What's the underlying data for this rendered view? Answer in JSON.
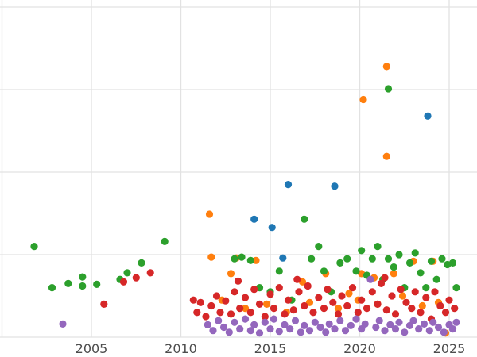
{
  "chart_data": {
    "type": "scatter",
    "title": "",
    "xlabel": "",
    "ylabel": "",
    "grid": true,
    "legend_position": "none",
    "x_tick_labels": [
      "2005",
      "2010",
      "2015",
      "2020",
      "2025"
    ],
    "x_tick_years": [
      2005,
      2010,
      2015,
      2020,
      2025
    ],
    "x_gridline_years": [
      2000,
      2005,
      2010,
      2015,
      2020,
      2025
    ],
    "x_range": [
      2000,
      2026.3
    ],
    "y_range": [
      0,
      4.0
    ],
    "y_gridlines": [
      0,
      1,
      2,
      3,
      4
    ],
    "y_tick_labels_visible": false,
    "series": [
      {
        "name": "blue",
        "color": "#1f77b4",
        "points": [
          [
            2014.1,
            1.43
          ],
          [
            2015.1,
            1.33
          ],
          [
            2015.7,
            0.96
          ],
          [
            2016.0,
            1.85
          ],
          [
            2018.6,
            1.83
          ],
          [
            2023.8,
            2.68
          ]
        ]
      },
      {
        "name": "orange",
        "color": "#ff7f0e",
        "points": [
          [
            2011.6,
            1.49
          ],
          [
            2011.7,
            0.97
          ],
          [
            2012.3,
            0.45
          ],
          [
            2012.8,
            0.77
          ],
          [
            2013.1,
            0.96
          ],
          [
            2013.6,
            0.35
          ],
          [
            2014.2,
            0.93
          ],
          [
            2014.8,
            0.4
          ],
          [
            2015.9,
            0.3
          ],
          [
            2016.8,
            0.67
          ],
          [
            2017.2,
            0.42
          ],
          [
            2018.1,
            0.77
          ],
          [
            2018.8,
            0.35
          ],
          [
            2019.4,
            0.53
          ],
          [
            2019.9,
            0.45
          ],
          [
            2020.1,
            0.77
          ],
          [
            2020.2,
            2.88
          ],
          [
            2020.8,
            0.72
          ],
          [
            2021.0,
            0.4
          ],
          [
            2021.3,
            0.7
          ],
          [
            2021.5,
            3.28
          ],
          [
            2021.5,
            2.19
          ],
          [
            2021.9,
            0.77
          ],
          [
            2022.4,
            0.5
          ],
          [
            2023.0,
            0.92
          ],
          [
            2023.5,
            0.38
          ],
          [
            2024.1,
            0.92
          ],
          [
            2024.4,
            0.42
          ],
          [
            2024.8,
            0.05
          ]
        ]
      },
      {
        "name": "green",
        "color": "#2ca02c",
        "points": [
          [
            2001.8,
            1.1
          ],
          [
            2002.8,
            0.6
          ],
          [
            2003.7,
            0.65
          ],
          [
            2004.5,
            0.73
          ],
          [
            2004.5,
            0.62
          ],
          [
            2005.3,
            0.64
          ],
          [
            2006.6,
            0.7
          ],
          [
            2007.0,
            0.78
          ],
          [
            2007.8,
            0.9
          ],
          [
            2009.1,
            1.16
          ],
          [
            2013.0,
            0.95
          ],
          [
            2013.4,
            0.97
          ],
          [
            2013.9,
            0.93
          ],
          [
            2014.4,
            0.6
          ],
          [
            2015.0,
            0.55
          ],
          [
            2015.5,
            0.8
          ],
          [
            2016.2,
            0.45
          ],
          [
            2016.9,
            1.43
          ],
          [
            2017.3,
            0.95
          ],
          [
            2017.7,
            1.1
          ],
          [
            2018.0,
            0.8
          ],
          [
            2018.4,
            0.55
          ],
          [
            2018.9,
            0.9
          ],
          [
            2019.3,
            0.95
          ],
          [
            2019.8,
            0.8
          ],
          [
            2020.1,
            1.05
          ],
          [
            2020.4,
            0.75
          ],
          [
            2020.7,
            0.95
          ],
          [
            2021.0,
            1.1
          ],
          [
            2021.3,
            0.7
          ],
          [
            2021.6,
            3.01
          ],
          [
            2021.6,
            0.95
          ],
          [
            2021.9,
            0.85
          ],
          [
            2022.2,
            1.0
          ],
          [
            2022.5,
            0.6
          ],
          [
            2022.8,
            0.9
          ],
          [
            2023.1,
            1.02
          ],
          [
            2023.4,
            0.78
          ],
          [
            2023.7,
            0.6
          ],
          [
            2024.0,
            0.92
          ],
          [
            2024.3,
            0.7
          ],
          [
            2024.6,
            0.95
          ],
          [
            2024.9,
            0.88
          ],
          [
            2025.2,
            0.9
          ],
          [
            2025.4,
            0.6
          ]
        ]
      },
      {
        "name": "red",
        "color": "#d62728",
        "points": [
          [
            2005.7,
            0.4
          ],
          [
            2006.8,
            0.67
          ],
          [
            2007.5,
            0.72
          ],
          [
            2008.3,
            0.78
          ],
          [
            2010.7,
            0.45
          ],
          [
            2010.9,
            0.3
          ],
          [
            2011.1,
            0.42
          ],
          [
            2011.4,
            0.25
          ],
          [
            2011.7,
            0.38
          ],
          [
            2012.0,
            0.5
          ],
          [
            2012.2,
            0.3
          ],
          [
            2012.5,
            0.44
          ],
          [
            2012.8,
            0.28
          ],
          [
            2013.0,
            0.55
          ],
          [
            2013.2,
            0.68
          ],
          [
            2013.3,
            0.35
          ],
          [
            2013.6,
            0.48
          ],
          [
            2013.9,
            0.3
          ],
          [
            2014.1,
            0.58
          ],
          [
            2014.4,
            0.4
          ],
          [
            2014.7,
            0.25
          ],
          [
            2015.0,
            0.52
          ],
          [
            2015.2,
            0.35
          ],
          [
            2015.5,
            0.6
          ],
          [
            2015.8,
            0.28
          ],
          [
            2016.0,
            0.45
          ],
          [
            2016.3,
            0.33
          ],
          [
            2016.5,
            0.7
          ],
          [
            2016.6,
            0.55
          ],
          [
            2016.9,
            0.38
          ],
          [
            2017.1,
            0.62
          ],
          [
            2017.4,
            0.3
          ],
          [
            2017.7,
            0.48
          ],
          [
            2018.0,
            0.35
          ],
          [
            2018.2,
            0.58
          ],
          [
            2018.5,
            0.42
          ],
          [
            2018.8,
            0.28
          ],
          [
            2019.0,
            0.5
          ],
          [
            2019.3,
            0.38
          ],
          [
            2019.6,
            0.6
          ],
          [
            2019.9,
            0.3
          ],
          [
            2020.1,
            0.45
          ],
          [
            2020.4,
            0.35
          ],
          [
            2020.7,
            0.55
          ],
          [
            2021.0,
            0.4
          ],
          [
            2021.2,
            0.65
          ],
          [
            2021.4,
            0.72
          ],
          [
            2021.5,
            0.33
          ],
          [
            2021.8,
            0.5
          ],
          [
            2022.0,
            0.28
          ],
          [
            2022.3,
            0.58
          ],
          [
            2022.6,
            0.42
          ],
          [
            2022.9,
            0.35
          ],
          [
            2023.1,
            0.55
          ],
          [
            2023.4,
            0.3
          ],
          [
            2023.7,
            0.48
          ],
          [
            2024.0,
            0.22
          ],
          [
            2024.2,
            0.55
          ],
          [
            2024.5,
            0.38
          ],
          [
            2024.8,
            0.3
          ],
          [
            2025.0,
            0.45
          ],
          [
            2025.3,
            0.35
          ]
        ]
      },
      {
        "name": "purple",
        "color": "#9467bd",
        "points": [
          [
            2003.4,
            0.16
          ],
          [
            2011.5,
            0.15
          ],
          [
            2011.8,
            0.08
          ],
          [
            2012.1,
            0.2
          ],
          [
            2012.4,
            0.12
          ],
          [
            2012.7,
            0.06
          ],
          [
            2013.0,
            0.18
          ],
          [
            2013.3,
            0.1
          ],
          [
            2013.6,
            0.22
          ],
          [
            2013.9,
            0.08
          ],
          [
            2014.1,
            0.15
          ],
          [
            2014.4,
            0.05
          ],
          [
            2014.7,
            0.18
          ],
          [
            2015.0,
            0.1
          ],
          [
            2015.2,
            0.22
          ],
          [
            2015.5,
            0.07
          ],
          [
            2015.8,
            0.15
          ],
          [
            2016.1,
            0.1
          ],
          [
            2016.4,
            0.2
          ],
          [
            2016.7,
            0.06
          ],
          [
            2016.9,
            0.14
          ],
          [
            2017.2,
            0.08
          ],
          [
            2017.5,
            0.18
          ],
          [
            2017.8,
            0.12
          ],
          [
            2018.1,
            0.06
          ],
          [
            2018.3,
            0.16
          ],
          [
            2018.6,
            0.1
          ],
          [
            2018.9,
            0.2
          ],
          [
            2019.2,
            0.08
          ],
          [
            2019.5,
            0.14
          ],
          [
            2019.8,
            0.22
          ],
          [
            2020.1,
            0.1
          ],
          [
            2020.3,
            0.16
          ],
          [
            2020.6,
            0.7
          ],
          [
            2020.9,
            0.12
          ],
          [
            2021.1,
            0.2
          ],
          [
            2021.4,
            0.08
          ],
          [
            2021.7,
            0.15
          ],
          [
            2022.0,
            0.1
          ],
          [
            2022.2,
            0.18
          ],
          [
            2022.5,
            0.06
          ],
          [
            2022.8,
            0.14
          ],
          [
            2023.0,
            0.2
          ],
          [
            2023.3,
            0.1
          ],
          [
            2023.6,
            0.16
          ],
          [
            2023.9,
            0.08
          ],
          [
            2024.1,
            0.18
          ],
          [
            2024.4,
            0.12
          ],
          [
            2024.7,
            0.06
          ],
          [
            2025.0,
            0.15
          ],
          [
            2025.2,
            0.1
          ],
          [
            2025.4,
            0.18
          ]
        ]
      }
    ]
  },
  "colors": {
    "background": "#ffffff",
    "gridline": "#e2e2e2",
    "tick_label": "#4d4d4d"
  }
}
